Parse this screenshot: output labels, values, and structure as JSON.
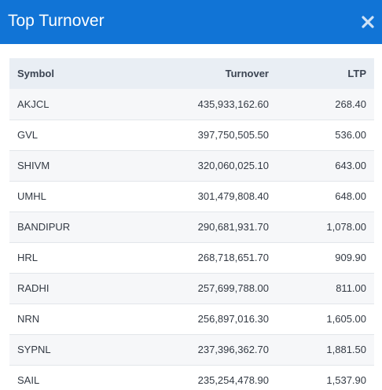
{
  "header": {
    "title": "Top Turnover",
    "close_icon": "close-icon"
  },
  "table": {
    "columns": [
      "Symbol",
      "Turnover",
      "LTP"
    ],
    "rows": [
      {
        "symbol": "AKJCL",
        "turnover": "435,933,162.60",
        "ltp": "268.40"
      },
      {
        "symbol": "GVL",
        "turnover": "397,750,505.50",
        "ltp": "536.00"
      },
      {
        "symbol": "SHIVM",
        "turnover": "320,060,025.10",
        "ltp": "643.00"
      },
      {
        "symbol": "UMHL",
        "turnover": "301,479,808.40",
        "ltp": "648.00"
      },
      {
        "symbol": "BANDIPUR",
        "turnover": "290,681,931.70",
        "ltp": "1,078.00"
      },
      {
        "symbol": "HRL",
        "turnover": "268,718,651.70",
        "ltp": "909.90"
      },
      {
        "symbol": "RADHI",
        "turnover": "257,699,788.00",
        "ltp": "811.00"
      },
      {
        "symbol": "NRN",
        "turnover": "256,897,016.30",
        "ltp": "1,605.00"
      },
      {
        "symbol": "SYPNL",
        "turnover": "237,396,362.70",
        "ltp": "1,881.50"
      },
      {
        "symbol": "SAIL",
        "turnover": "235,254,478.90",
        "ltp": "1,537.90"
      }
    ]
  },
  "colors": {
    "header_bg": "#1174d6",
    "table_head_bg": "#e9eef4"
  }
}
